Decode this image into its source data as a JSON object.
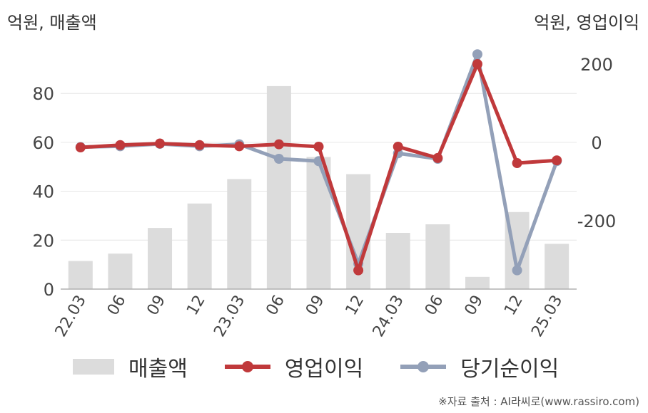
{
  "units": {
    "left": "억원, 매출액",
    "right": "억원, 영업이익"
  },
  "legend": {
    "bar": "매출액",
    "op": "영업이익",
    "net": "당기순이익"
  },
  "source": "※자료 출처 : AI라씨로(www.rassiro.com)",
  "colors": {
    "bar": "#dcdcdc",
    "op": "#c0393b",
    "net": "#93a0b8",
    "grid": "#e6e6e6",
    "axis": "#b0b0b0"
  },
  "chart_data": {
    "type": "bar",
    "categories": [
      "22.03",
      "06",
      "09",
      "12",
      "23.03",
      "06",
      "09",
      "12",
      "24.03",
      "06",
      "09",
      "12",
      "25.03"
    ],
    "series": [
      {
        "name": "매출액",
        "type": "bar",
        "axis": "left",
        "values": [
          11.5,
          14.5,
          25,
          35,
          45,
          83,
          54,
          47,
          23,
          26.5,
          5,
          31.5,
          18.5
        ]
      },
      {
        "name": "영업이익",
        "type": "line",
        "axis": "right",
        "values": [
          -13,
          -7,
          -3,
          -7,
          -10,
          -5,
          -11,
          -327,
          -11,
          -40,
          200,
          -53,
          -46
        ]
      },
      {
        "name": "당기순이익",
        "type": "line",
        "axis": "right",
        "values": [
          -12,
          -10,
          -4,
          -10,
          -5,
          -42,
          -48,
          -310,
          -28,
          -42,
          225,
          -327,
          -48
        ]
      }
    ],
    "y_left": {
      "ticks": [
        0,
        20,
        40,
        60,
        80
      ],
      "range": [
        0,
        92
      ]
    },
    "y_right": {
      "ticks": [
        200,
        0,
        -200
      ],
      "range": [
        -375,
        200
      ]
    },
    "grid": true,
    "legend_position": "bottom"
  }
}
